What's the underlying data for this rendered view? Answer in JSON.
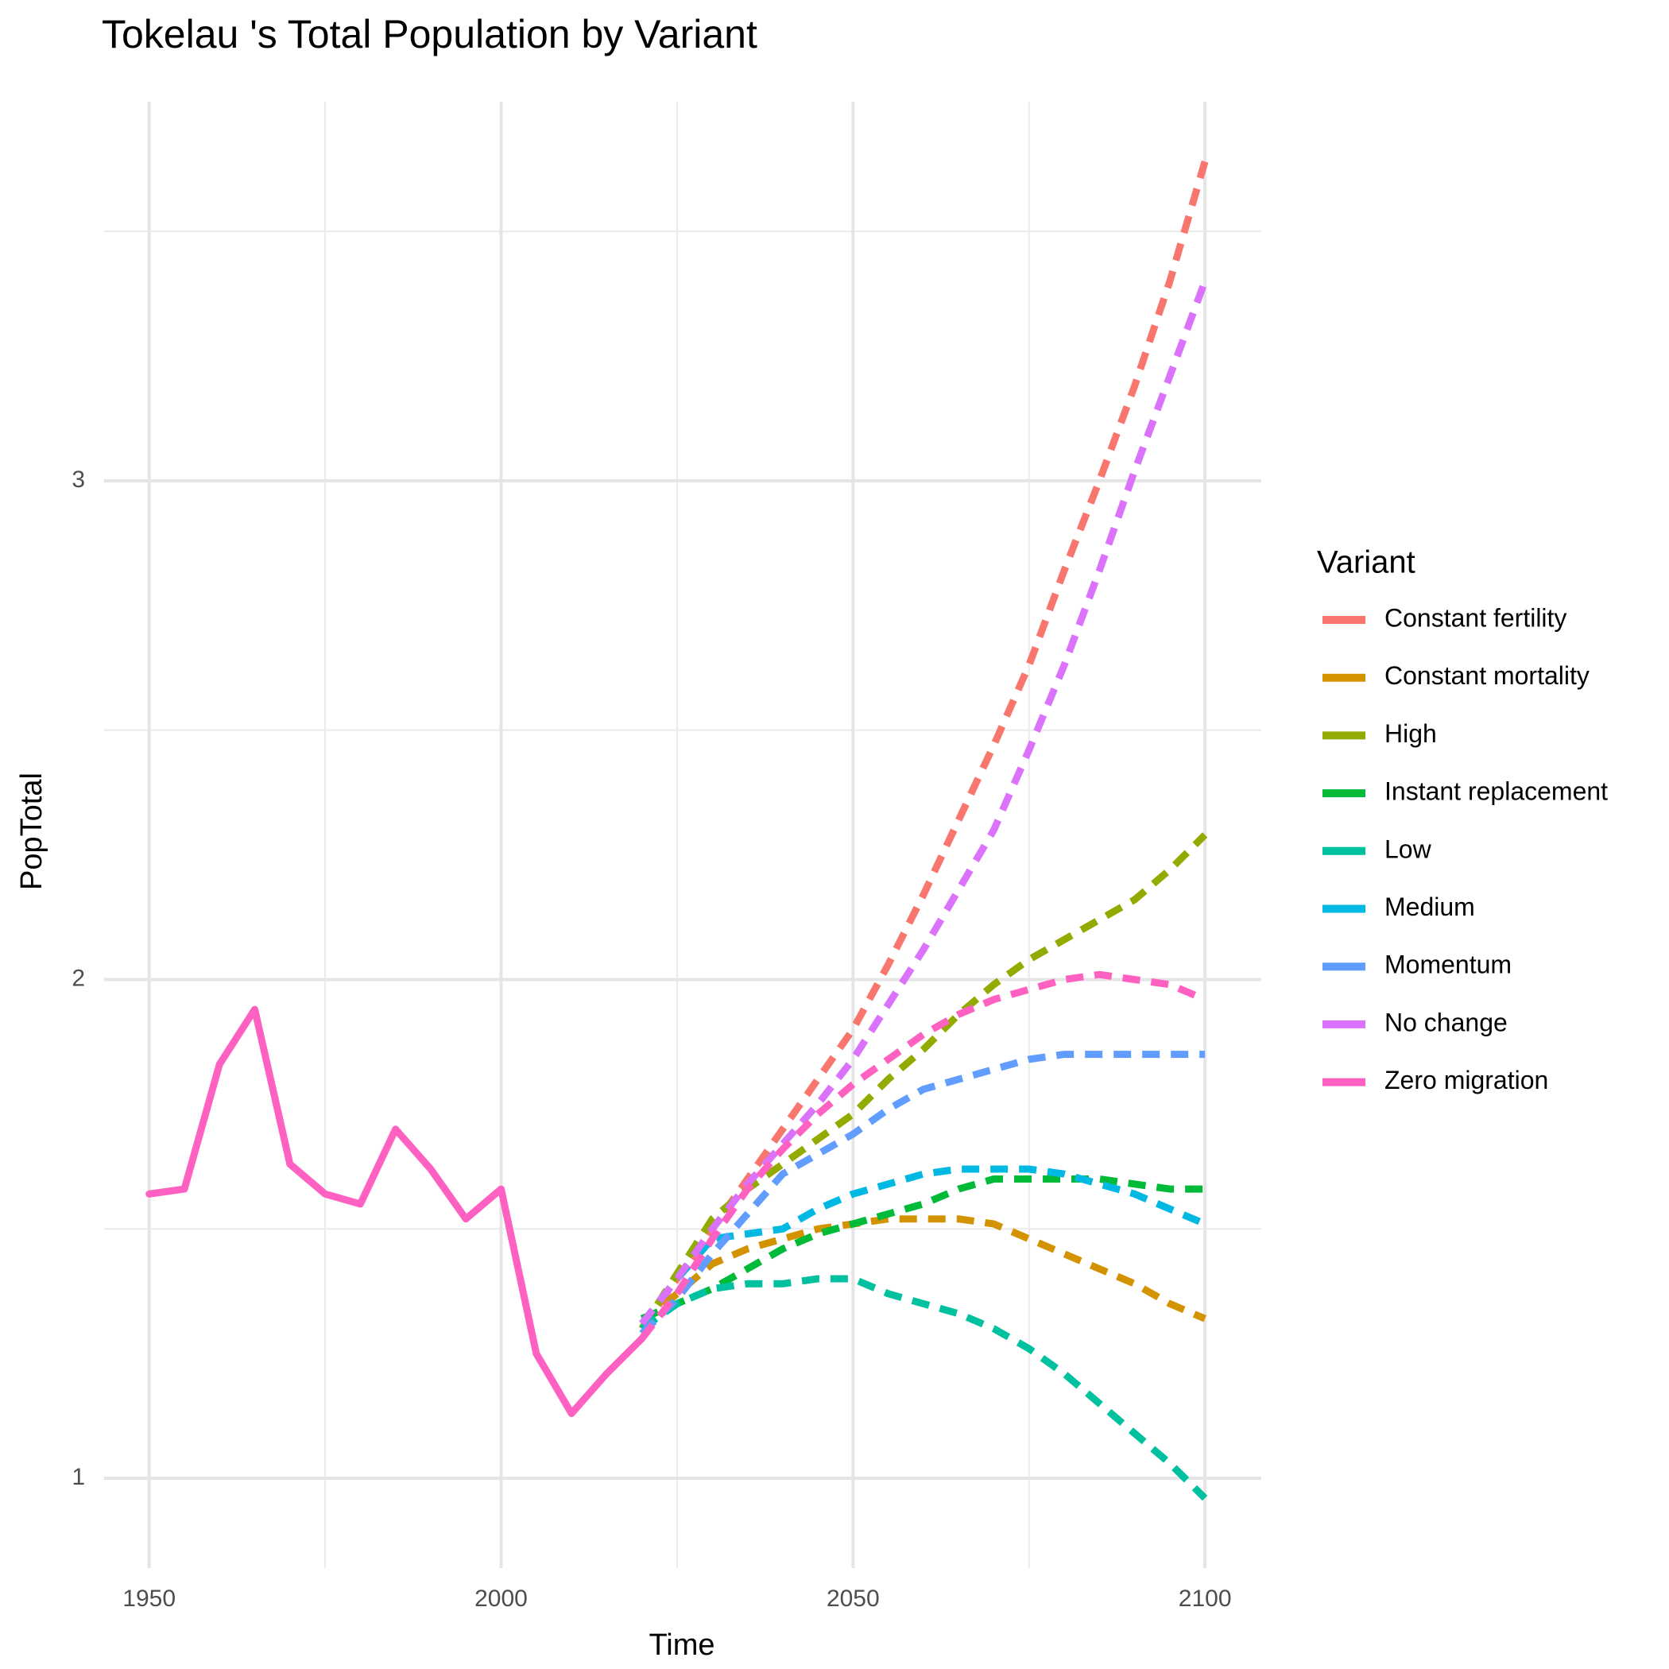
{
  "chart_data": {
    "type": "line",
    "title": "Tokelau 's Total Population by Variant",
    "x_label": "Time",
    "y_label": "PopTotal",
    "legend_title": "Variant",
    "x": [
      1950,
      1955,
      1960,
      1965,
      1970,
      1975,
      1980,
      1985,
      1990,
      1995,
      2000,
      2005,
      2010,
      2015,
      2020,
      2025,
      2030,
      2035,
      2040,
      2045,
      2050,
      2055,
      2060,
      2065,
      2070,
      2075,
      2080,
      2085,
      2090,
      2095,
      2100
    ],
    "projection_from": 2020,
    "xlim": [
      1943.6,
      2108
    ],
    "xticks": [
      1950,
      2000,
      2050,
      2100
    ],
    "xminor": [
      1975,
      2025,
      2075
    ],
    "ylim": [
      0.82,
      3.76
    ],
    "yticks": [
      1,
      2,
      3
    ],
    "yminor": [
      1.5,
      2.5,
      3.5
    ],
    "grid": true,
    "legend": "right",
    "series": [
      {
        "name": "Constant fertility",
        "color": "#F8766D",
        "values": [
          null,
          null,
          null,
          null,
          null,
          null,
          null,
          null,
          null,
          null,
          null,
          null,
          null,
          null,
          1.3,
          1.4,
          1.5,
          1.6,
          1.7,
          1.8,
          1.9,
          2.03,
          2.17,
          2.32,
          2.47,
          2.63,
          2.82,
          3.0,
          3.19,
          3.4,
          3.64
        ]
      },
      {
        "name": "Constant mortality",
        "color": "#D39200",
        "values": [
          null,
          null,
          null,
          null,
          null,
          null,
          null,
          null,
          null,
          null,
          null,
          null,
          null,
          null,
          1.31,
          1.37,
          1.43,
          1.46,
          1.48,
          1.5,
          1.51,
          1.52,
          1.52,
          1.52,
          1.51,
          1.48,
          1.45,
          1.42,
          1.39,
          1.35,
          1.32
        ]
      },
      {
        "name": "High",
        "color": "#93AA00",
        "values": [
          null,
          null,
          null,
          null,
          null,
          null,
          null,
          null,
          null,
          null,
          null,
          null,
          null,
          null,
          1.3,
          1.41,
          1.52,
          1.58,
          1.63,
          1.68,
          1.73,
          1.8,
          1.86,
          1.93,
          1.99,
          2.04,
          2.08,
          2.12,
          2.16,
          2.22,
          2.29
        ]
      },
      {
        "name": "Instant replacement",
        "color": "#00BA38",
        "values": [
          null,
          null,
          null,
          null,
          null,
          null,
          null,
          null,
          null,
          null,
          null,
          null,
          null,
          null,
          1.32,
          1.35,
          1.38,
          1.42,
          1.46,
          1.49,
          1.51,
          1.53,
          1.55,
          1.58,
          1.6,
          1.6,
          1.6,
          1.6,
          1.59,
          1.58,
          1.58
        ]
      },
      {
        "name": "Low",
        "color": "#00C19F",
        "values": [
          null,
          null,
          null,
          null,
          null,
          null,
          null,
          null,
          null,
          null,
          null,
          null,
          null,
          null,
          1.3,
          1.35,
          1.38,
          1.39,
          1.39,
          1.4,
          1.4,
          1.37,
          1.35,
          1.33,
          1.3,
          1.26,
          1.21,
          1.15,
          1.09,
          1.03,
          0.96
        ]
      },
      {
        "name": "Medium",
        "color": "#00B9E3",
        "values": [
          null,
          null,
          null,
          null,
          null,
          null,
          null,
          null,
          null,
          null,
          null,
          null,
          null,
          null,
          1.31,
          1.4,
          1.48,
          1.49,
          1.5,
          1.54,
          1.57,
          1.59,
          1.61,
          1.62,
          1.62,
          1.62,
          1.61,
          1.59,
          1.57,
          1.54,
          1.51
        ]
      },
      {
        "name": "Momentum",
        "color": "#619CFF",
        "values": [
          null,
          null,
          null,
          null,
          null,
          null,
          null,
          null,
          null,
          null,
          null,
          null,
          null,
          null,
          1.29,
          1.36,
          1.45,
          1.53,
          1.61,
          1.65,
          1.69,
          1.74,
          1.78,
          1.8,
          1.82,
          1.84,
          1.85,
          1.85,
          1.85,
          1.85,
          1.85
        ]
      },
      {
        "name": "No change",
        "color": "#DB72FB",
        "values": [
          null,
          null,
          null,
          null,
          null,
          null,
          null,
          null,
          null,
          null,
          null,
          null,
          null,
          null,
          1.31,
          1.4,
          1.5,
          1.59,
          1.67,
          1.75,
          1.84,
          1.95,
          2.06,
          2.18,
          2.3,
          2.46,
          2.63,
          2.82,
          3.02,
          3.21,
          3.4
        ]
      },
      {
        "name": "Zero migration",
        "color": "#FF61C3",
        "values": [
          1.57,
          1.58,
          1.83,
          1.94,
          1.63,
          1.57,
          1.55,
          1.7,
          1.62,
          1.52,
          1.58,
          1.25,
          1.13,
          1.21,
          1.28,
          1.37,
          1.48,
          1.58,
          1.66,
          1.73,
          1.79,
          1.84,
          1.89,
          1.93,
          1.96,
          1.98,
          2.0,
          2.01,
          2.0,
          1.99,
          1.96
        ]
      }
    ]
  }
}
